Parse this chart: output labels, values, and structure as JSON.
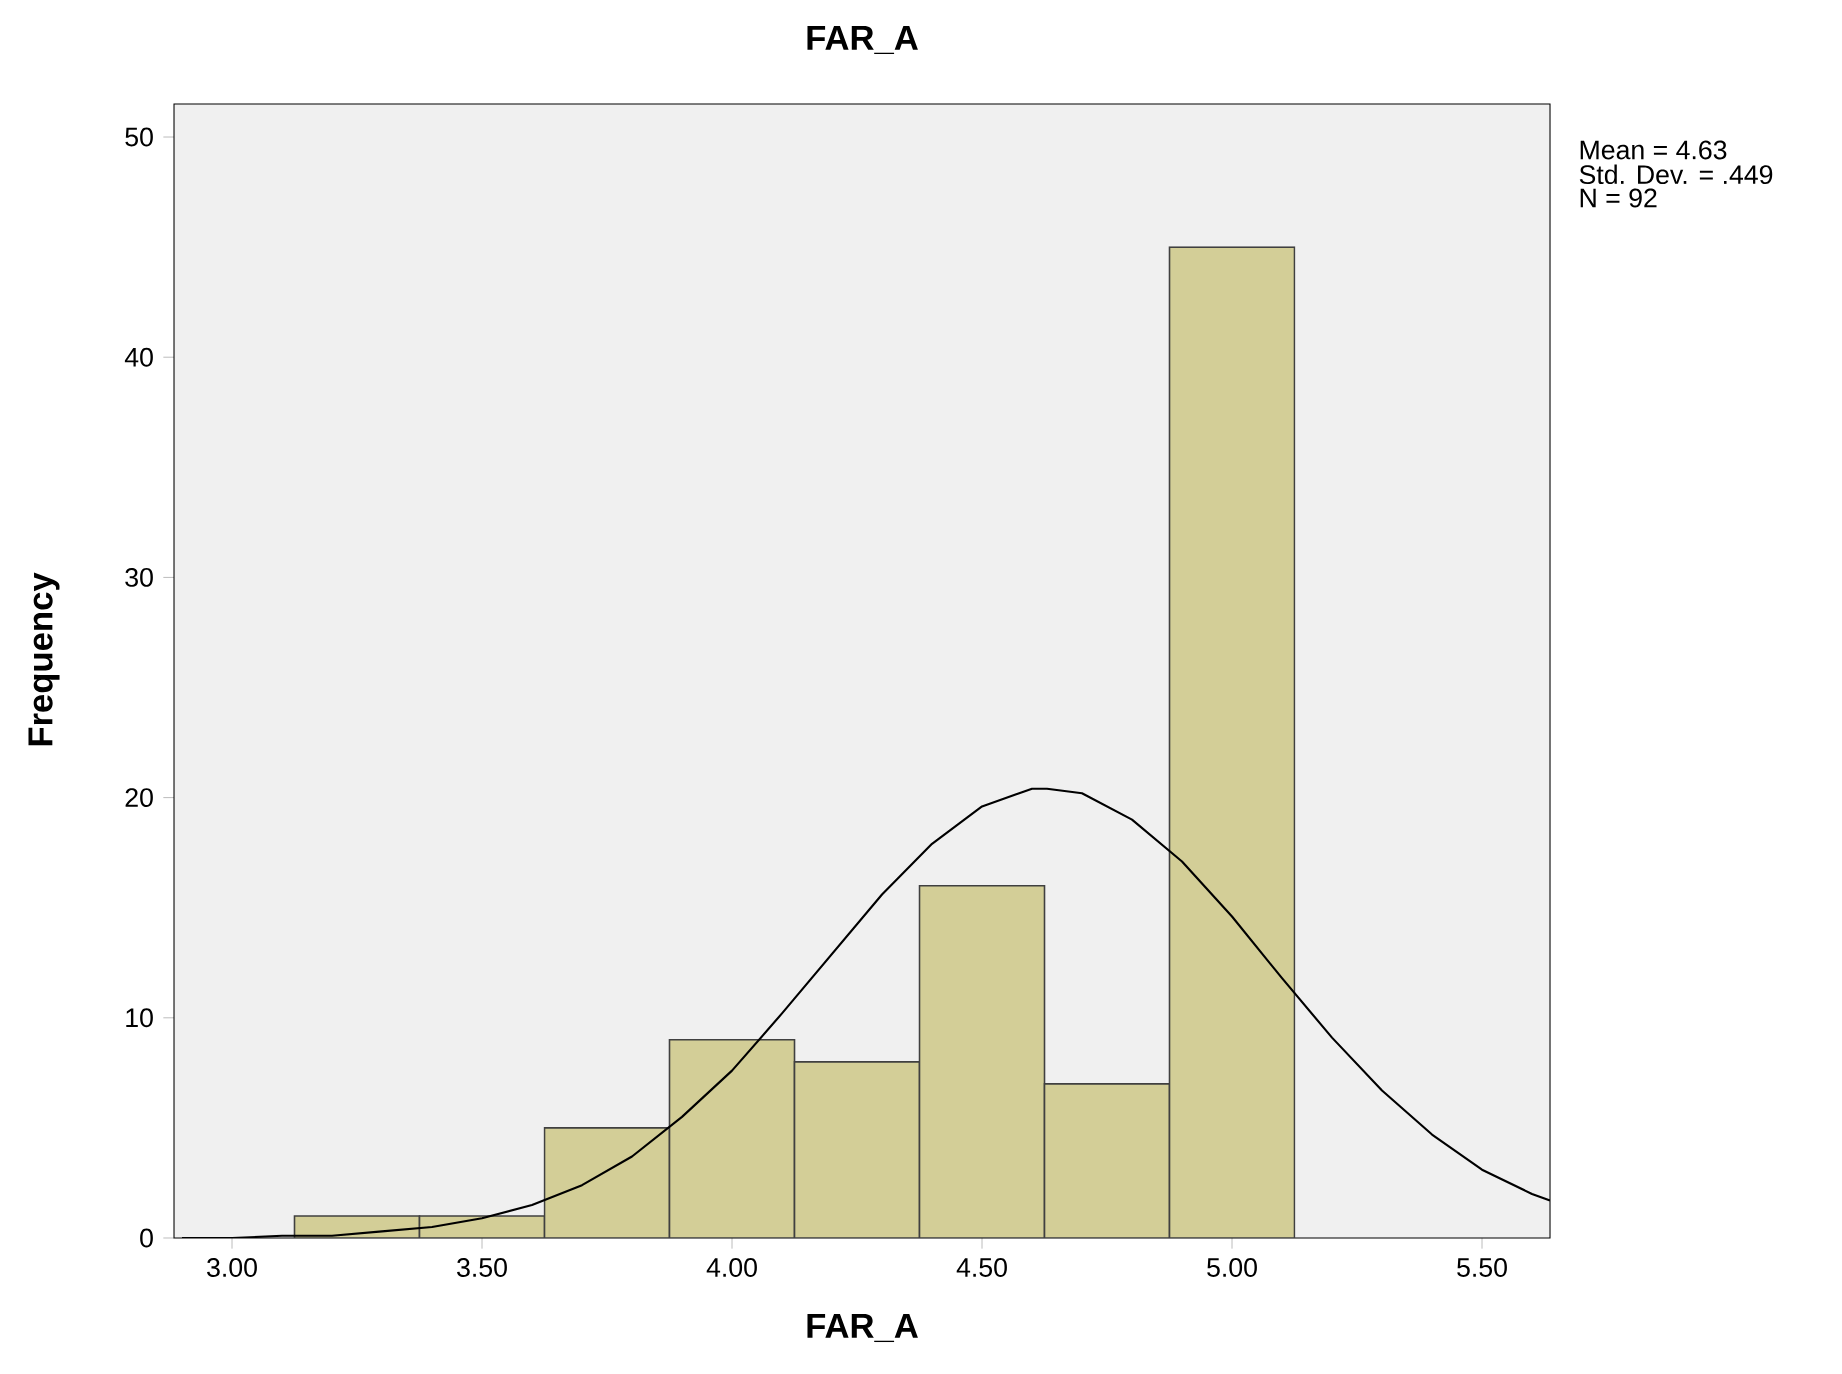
{
  "chart_data": {
    "type": "histogram",
    "title": "FAR_A",
    "xlabel": "FAR_A",
    "ylabel": "Frequency",
    "bins": [
      3.125,
      3.375,
      3.625,
      3.875,
      4.125,
      4.375,
      4.625,
      4.875,
      5.125
    ],
    "values": [
      1,
      1,
      5,
      9,
      8,
      16,
      7,
      45
    ],
    "color": "#d3ce97",
    "series": [
      {
        "type": "line",
        "color": "#000000",
        "x": [
          2.9,
          3.0,
          3.1,
          3.2,
          3.3,
          3.4,
          3.5,
          3.6,
          3.7,
          3.8,
          3.9,
          4.0,
          4.1,
          4.2,
          4.3,
          4.4,
          4.5,
          4.6,
          4.63,
          4.7,
          4.8,
          4.9,
          5.0,
          5.1,
          5.2,
          5.3,
          5.4,
          5.5,
          5.6,
          5.636
        ],
        "values": [
          0.0,
          0.0,
          0.1,
          0.1,
          0.3,
          0.5,
          0.9,
          1.5,
          2.4,
          3.7,
          5.5,
          7.6,
          10.2,
          12.9,
          15.6,
          17.9,
          19.6,
          20.4,
          20.4,
          20.2,
          19.0,
          17.1,
          14.6,
          11.8,
          9.1,
          6.7,
          4.7,
          3.1,
          2.0,
          1.7
        ]
      }
    ],
    "xlim": [
      2.884,
      5.636
    ],
    "ylim": [
      0,
      51.5
    ],
    "xticks": [
      {
        "value": 3.0,
        "label": "3.00"
      },
      {
        "value": 3.5,
        "label": "3.50"
      },
      {
        "value": 4.0,
        "label": "4.00"
      },
      {
        "value": 4.5,
        "label": "4.50"
      },
      {
        "value": 5.0,
        "label": "5.00"
      },
      {
        "value": 5.5,
        "label": "5.50"
      }
    ],
    "yticks": [
      0,
      10,
      20,
      30,
      40,
      50
    ],
    "annotations": [
      "Mean = 4.63",
      "Std. Dev. = .449",
      "N = 92"
    ]
  }
}
